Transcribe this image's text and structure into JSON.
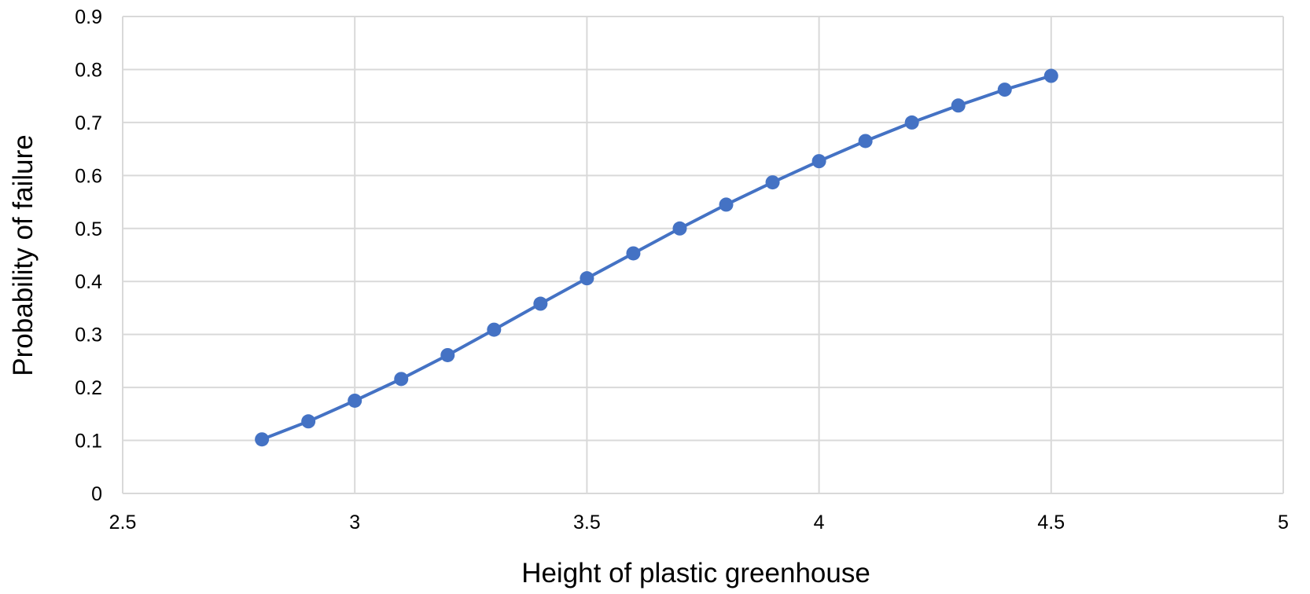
{
  "chart_data": {
    "type": "scatter",
    "title": "",
    "xlabel": "Height of plastic greenhouse",
    "ylabel": "Probability of failure",
    "xlim": [
      2.5,
      5
    ],
    "ylim": [
      0,
      0.9
    ],
    "x_ticks": [
      2.5,
      3,
      3.5,
      4,
      4.5,
      5
    ],
    "x_tick_labels": [
      "2.5",
      "3",
      "3.5",
      "4",
      "4.5",
      "5"
    ],
    "y_ticks": [
      0,
      0.1,
      0.2,
      0.3,
      0.4,
      0.5,
      0.6,
      0.7,
      0.8,
      0.9
    ],
    "y_tick_labels": [
      "0",
      "0.1",
      "0.2",
      "0.3",
      "0.4",
      "0.5",
      "0.6",
      "0.7",
      "0.8",
      "0.9"
    ],
    "grid": true,
    "legend": "none",
    "series": [
      {
        "color": "#4472c4",
        "style": "line-with-markers",
        "x": [
          2.8,
          2.9,
          3.0,
          3.1,
          3.2,
          3.3,
          3.4,
          3.5,
          3.6,
          3.7,
          3.8,
          3.9,
          4.0,
          4.1,
          4.2,
          4.3,
          4.4,
          4.5
        ],
        "y": [
          0.102,
          0.136,
          0.175,
          0.216,
          0.261,
          0.309,
          0.358,
          0.406,
          0.453,
          0.5,
          0.545,
          0.587,
          0.627,
          0.665,
          0.7,
          0.732,
          0.762,
          0.788
        ]
      }
    ]
  }
}
